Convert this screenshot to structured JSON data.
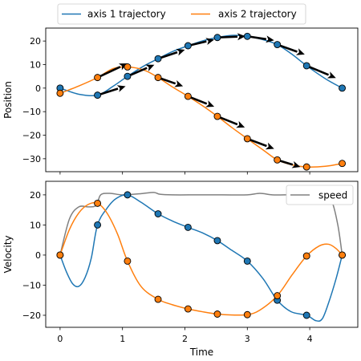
{
  "chart_data": [
    {
      "type": "line",
      "title": "",
      "xlabel": "",
      "ylabel": "Position",
      "xlim": [
        -0.23,
        4.77
      ],
      "ylim": [
        -35.5,
        25.5
      ],
      "x_ticks": [
        0,
        1,
        2,
        3,
        4
      ],
      "y_ticks": [
        -30,
        -20,
        -10,
        0,
        10,
        20
      ],
      "y_tick_labels": [
        "−30",
        "−20",
        "−10",
        "0",
        "10",
        "20"
      ],
      "grid": false,
      "legend_position": "above the plot, two columns",
      "series": [
        {
          "name": "axis 1 trajectory",
          "color": "#1f77b4",
          "x": [
            0,
            0.6,
            1.08,
            1.57,
            2.05,
            2.52,
            3.0,
            3.48,
            3.95,
            4.52
          ],
          "y": [
            0,
            -3,
            5,
            12.5,
            18,
            21.5,
            22,
            18.5,
            9.5,
            0
          ],
          "curve": [
            [
              0,
              0
            ],
            [
              0.3,
              -2.6
            ],
            [
              0.6,
              -3
            ],
            [
              0.85,
              0.8
            ],
            [
              1.08,
              5
            ],
            [
              1.35,
              9.5
            ],
            [
              1.57,
              12.5
            ],
            [
              1.8,
              15.5
            ],
            [
              2.05,
              18
            ],
            [
              2.3,
              20.2
            ],
            [
              2.52,
              21.5
            ],
            [
              2.75,
              22.4
            ],
            [
              3.0,
              22
            ],
            [
              3.25,
              20.6
            ],
            [
              3.48,
              18.5
            ],
            [
              3.72,
              14.3
            ],
            [
              3.95,
              9.5
            ],
            [
              4.25,
              4
            ],
            [
              4.52,
              0
            ]
          ],
          "arrows": [
            [
              0.6,
              -3,
              1.05,
              0.8
            ],
            [
              1.08,
              5,
              1.51,
              9.9
            ],
            [
              1.57,
              12.5,
              2.0,
              16.3
            ],
            [
              2.05,
              18,
              2.47,
              20.6
            ],
            [
              2.52,
              21.5,
              2.97,
              22.0
            ],
            [
              3.0,
              22,
              3.43,
              20.3
            ],
            [
              3.48,
              18.5,
              3.92,
              14.3
            ],
            [
              3.95,
              9.5,
              4.42,
              4.3
            ]
          ]
        },
        {
          "name": "axis 2 trajectory",
          "color": "#ff7f0e",
          "x": [
            0,
            0.6,
            1.08,
            1.57,
            2.05,
            2.52,
            3.0,
            3.48,
            3.95,
            4.52
          ],
          "y": [
            -2.2,
            4.5,
            9,
            4.5,
            -3.5,
            -12,
            -21.5,
            -30.5,
            -33.5,
            -32
          ],
          "curve": [
            [
              0,
              -2.2
            ],
            [
              0.3,
              0.9
            ],
            [
              0.6,
              4.5
            ],
            [
              0.85,
              8.3
            ],
            [
              1.08,
              9
            ],
            [
              1.35,
              7.6
            ],
            [
              1.57,
              4.5
            ],
            [
              1.8,
              0.5
            ],
            [
              2.05,
              -3.5
            ],
            [
              2.3,
              -7.8
            ],
            [
              2.52,
              -12
            ],
            [
              2.75,
              -16.7
            ],
            [
              3.0,
              -21.5
            ],
            [
              3.25,
              -26.2
            ],
            [
              3.48,
              -30.5
            ],
            [
              3.72,
              -32.6
            ],
            [
              3.95,
              -33.5
            ],
            [
              4.25,
              -33.2
            ],
            [
              4.52,
              -32
            ]
          ],
          "arrows": [
            [
              0.6,
              4.5,
              1.08,
              10.5
            ],
            [
              1.57,
              4.5,
              1.97,
              0.8
            ],
            [
              2.05,
              -3.5,
              2.47,
              -7.9
            ],
            [
              2.52,
              -12,
              2.96,
              -16.7
            ],
            [
              3.0,
              -21.5,
              3.43,
              -25.8
            ],
            [
              3.48,
              -30.5,
              3.85,
              -33.5
            ]
          ]
        }
      ],
      "arrow_color": "#000000"
    },
    {
      "type": "line",
      "title": "",
      "xlabel": "Time",
      "ylabel": "Velocity",
      "xlim": [
        -0.23,
        4.77
      ],
      "ylim": [
        -24,
        24.5
      ],
      "x_ticks": [
        0,
        1,
        2,
        3,
        4
      ],
      "y_ticks": [
        -20,
        -10,
        0,
        10,
        20
      ],
      "y_tick_labels": [
        "−20",
        "−10",
        "0",
        "10",
        "20"
      ],
      "grid": false,
      "legend_position": "upper right",
      "series": [
        {
          "name": "",
          "color": "#1f77b4",
          "x": [
            0,
            0.6,
            1.08,
            1.57,
            2.05,
            2.52,
            3.0,
            3.48,
            3.95,
            4.52
          ],
          "y": [
            0,
            10,
            20,
            13.7,
            9.2,
            4.8,
            -2,
            -15,
            -20,
            0
          ],
          "curve": [
            [
              0,
              0
            ],
            [
              0.1,
              -5.5
            ],
            [
              0.2,
              -9.5
            ],
            [
              0.3,
              -10.4
            ],
            [
              0.4,
              -7.5
            ],
            [
              0.5,
              -1
            ],
            [
              0.6,
              10
            ],
            [
              0.75,
              15.5
            ],
            [
              0.9,
              18.8
            ],
            [
              1.08,
              20
            ],
            [
              1.3,
              17.5
            ],
            [
              1.57,
              13.7
            ],
            [
              1.8,
              11.3
            ],
            [
              2.05,
              9.2
            ],
            [
              2.3,
              7.2
            ],
            [
              2.52,
              4.8
            ],
            [
              2.75,
              1.6
            ],
            [
              3.0,
              -2
            ],
            [
              3.25,
              -7.8
            ],
            [
              3.48,
              -15
            ],
            [
              3.7,
              -18.8
            ],
            [
              3.95,
              -20
            ],
            [
              4.1,
              -21.8
            ],
            [
              4.2,
              -21.2
            ],
            [
              4.3,
              -16
            ],
            [
              4.42,
              -8
            ],
            [
              4.52,
              0
            ]
          ]
        },
        {
          "name": "",
          "color": "#ff7f0e",
          "x": [
            0,
            0.6,
            1.08,
            1.57,
            2.05,
            2.52,
            3.0,
            3.48,
            3.95,
            4.52
          ],
          "y": [
            0,
            17.2,
            -2,
            -14.7,
            -17.9,
            -19.6,
            -19.8,
            -13.5,
            -0.3,
            0
          ],
          "curve": [
            [
              0,
              0
            ],
            [
              0.15,
              8.5
            ],
            [
              0.3,
              14
            ],
            [
              0.45,
              16.8
            ],
            [
              0.6,
              17.2
            ],
            [
              0.75,
              14
            ],
            [
              0.92,
              7
            ],
            [
              1.08,
              -2
            ],
            [
              1.3,
              -10.5
            ],
            [
              1.57,
              -14.7
            ],
            [
              1.8,
              -16.5
            ],
            [
              2.05,
              -17.9
            ],
            [
              2.3,
              -18.9
            ],
            [
              2.52,
              -19.6
            ],
            [
              2.75,
              -19.9
            ],
            [
              3.0,
              -19.8
            ],
            [
              3.2,
              -18.3
            ],
            [
              3.48,
              -13.5
            ],
            [
              3.72,
              -6.5
            ],
            [
              3.95,
              -0.3
            ],
            [
              4.15,
              3
            ],
            [
              4.3,
              3.6
            ],
            [
              4.42,
              2.2
            ],
            [
              4.52,
              0
            ]
          ]
        },
        {
          "name": "speed",
          "color": "#808080",
          "x": [
            0,
            0.15,
            0.3,
            0.45,
            0.58,
            0.65,
            0.8,
            1.0,
            1.3,
            1.5,
            1.6,
            1.8,
            2.2,
            2.6,
            3.0,
            3.2,
            3.4,
            3.6,
            3.8,
            4.0,
            4.2,
            4.35,
            4.45,
            4.52
          ],
          "y": [
            0,
            12,
            16,
            16,
            16.5,
            20,
            20.5,
            20,
            20.4,
            20.8,
            20.2,
            20,
            20,
            20,
            20,
            20.5,
            20,
            20,
            20,
            20,
            20,
            18,
            10,
            0
          ]
        }
      ]
    }
  ]
}
